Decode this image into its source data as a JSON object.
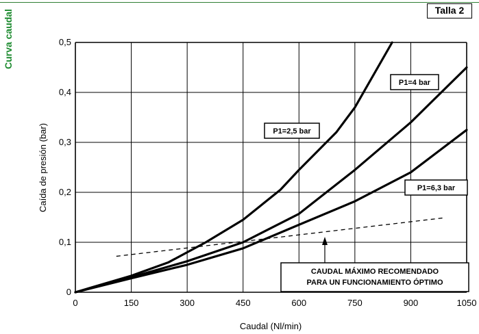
{
  "side_title": "Curva caudal",
  "tag": "Talla 2",
  "chart_data": {
    "type": "line",
    "xlabel": "Caudal (Nl/min)",
    "ylabel": "Caída de presión (bar)",
    "xlim": [
      0,
      1050
    ],
    "ylim": [
      0,
      0.5
    ],
    "x_ticks": [
      0,
      150,
      300,
      450,
      600,
      750,
      900,
      1050
    ],
    "x_tick_labels": [
      "0",
      "150",
      "300",
      "450",
      "600",
      "750",
      "900",
      "1050"
    ],
    "y_ticks": [
      0,
      0.1,
      0.2,
      0.3,
      0.4,
      0.5
    ],
    "y_tick_labels": [
      "0",
      "0,1",
      "0,2",
      "0,3",
      "0,4",
      "0,5"
    ],
    "grid": true,
    "series": [
      {
        "name": "P1=2,5 bar",
        "x": [
          0,
          150,
          250,
          350,
          450,
          550,
          600,
          700,
          750,
          850
        ],
        "y": [
          0,
          0.033,
          0.06,
          0.1,
          0.145,
          0.205,
          0.245,
          0.32,
          0.37,
          0.5
        ]
      },
      {
        "name": "P1=4 bar",
        "x": [
          0,
          150,
          300,
          450,
          600,
          750,
          900,
          1050
        ],
        "y": [
          0,
          0.03,
          0.062,
          0.1,
          0.157,
          0.245,
          0.34,
          0.45
        ]
      },
      {
        "name": "P1=6,3 bar",
        "x": [
          0,
          150,
          300,
          450,
          600,
          750,
          900,
          1050
        ],
        "y": [
          0,
          0.028,
          0.055,
          0.088,
          0.135,
          0.182,
          0.24,
          0.325
        ]
      }
    ],
    "recommended_line": {
      "x": [
        110,
        990
      ],
      "y": [
        0.072,
        0.149
      ],
      "style": "dashed"
    },
    "annotations": [
      {
        "text_lines": [
          "CAUDAL MÁXIMO RECOMENDADO",
          "PARA UN FUNCIONAMIENTO ÓPTIMO"
        ]
      }
    ]
  }
}
